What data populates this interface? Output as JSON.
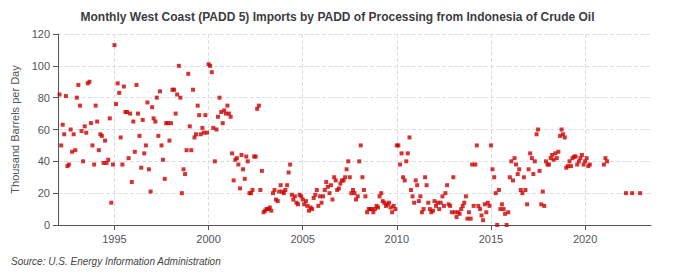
{
  "chart_data": {
    "type": "scatter",
    "title": "Monthly West Coast (PADD 5) Imports by PADD of Processing from Indonesia of Crude Oil",
    "ylabel": "Thousand Barrels per Day",
    "annotation": "Source: U.S. Energy Information Administration",
    "color": "#cc0000",
    "marker": "square",
    "grid": true,
    "xlim": [
      1992.0,
      2023.5
    ],
    "xticks": [
      1995,
      2000,
      2005,
      2010,
      2015,
      2020
    ],
    "ylim": [
      0,
      120
    ],
    "yticks": [
      0,
      20,
      40,
      60,
      80,
      100,
      120
    ],
    "x": [
      1992.08,
      1992.17,
      1992.25,
      1992.33,
      1992.42,
      1992.5,
      1992.58,
      1992.67,
      1992.75,
      1992.83,
      1992.92,
      1993.0,
      1993.08,
      1993.17,
      1993.25,
      1993.33,
      1993.42,
      1993.5,
      1993.58,
      1993.67,
      1993.75,
      1993.83,
      1993.92,
      1994.0,
      1994.08,
      1994.17,
      1994.25,
      1994.33,
      1994.42,
      1994.5,
      1994.58,
      1994.67,
      1994.75,
      1994.83,
      1994.92,
      1995.0,
      1995.08,
      1995.17,
      1995.25,
      1995.33,
      1995.42,
      1995.5,
      1995.58,
      1995.67,
      1995.75,
      1995.83,
      1995.92,
      1996.0,
      1996.08,
      1996.17,
      1996.25,
      1996.33,
      1996.42,
      1996.5,
      1996.58,
      1996.67,
      1996.75,
      1996.83,
      1996.92,
      1997.0,
      1997.08,
      1997.17,
      1997.25,
      1997.33,
      1997.42,
      1997.5,
      1997.58,
      1997.67,
      1997.75,
      1997.83,
      1997.92,
      1998.0,
      1998.08,
      1998.17,
      1998.25,
      1998.33,
      1998.42,
      1998.5,
      1998.58,
      1998.67,
      1998.75,
      1998.83,
      1998.92,
      1999.0,
      1999.08,
      1999.17,
      1999.25,
      1999.33,
      1999.42,
      1999.5,
      1999.58,
      1999.67,
      1999.75,
      1999.83,
      1999.92,
      2000.0,
      2000.08,
      2000.17,
      2000.25,
      2000.33,
      2000.42,
      2000.5,
      2000.58,
      2000.67,
      2000.75,
      2000.83,
      2000.92,
      2001.0,
      2001.08,
      2001.17,
      2001.25,
      2001.33,
      2001.42,
      2001.5,
      2001.58,
      2001.67,
      2001.75,
      2001.83,
      2001.92,
      2002.0,
      2002.08,
      2002.17,
      2002.25,
      2002.33,
      2002.42,
      2002.5,
      2002.58,
      2002.67,
      2002.75,
      2002.83,
      2002.92,
      2003.0,
      2003.08,
      2003.17,
      2003.25,
      2003.33,
      2003.42,
      2003.5,
      2003.58,
      2003.67,
      2003.75,
      2003.83,
      2003.92,
      2004.0,
      2004.08,
      2004.17,
      2004.25,
      2004.33,
      2004.42,
      2004.5,
      2004.58,
      2004.67,
      2004.75,
      2004.83,
      2004.92,
      2005.0,
      2005.08,
      2005.17,
      2005.25,
      2005.33,
      2005.42,
      2005.5,
      2005.58,
      2005.67,
      2005.75,
      2005.83,
      2005.92,
      2006.0,
      2006.08,
      2006.17,
      2006.25,
      2006.33,
      2006.42,
      2006.5,
      2006.58,
      2006.67,
      2006.75,
      2006.83,
      2006.92,
      2007.0,
      2007.08,
      2007.17,
      2007.25,
      2007.33,
      2007.42,
      2007.5,
      2007.58,
      2007.67,
      2007.75,
      2007.83,
      2007.92,
      2008.0,
      2008.08,
      2008.17,
      2008.25,
      2008.33,
      2008.42,
      2008.5,
      2008.58,
      2008.67,
      2008.75,
      2008.83,
      2008.92,
      2009.0,
      2009.08,
      2009.17,
      2009.25,
      2009.33,
      2009.42,
      2009.5,
      2009.58,
      2009.67,
      2009.75,
      2009.83,
      2009.92,
      2010.0,
      2010.08,
      2010.17,
      2010.25,
      2010.33,
      2010.42,
      2010.5,
      2010.58,
      2010.67,
      2010.75,
      2010.83,
      2010.92,
      2011.0,
      2011.08,
      2011.17,
      2011.25,
      2011.33,
      2011.42,
      2011.5,
      2011.58,
      2011.67,
      2011.75,
      2011.83,
      2011.92,
      2012.0,
      2012.08,
      2012.17,
      2012.25,
      2012.33,
      2012.42,
      2012.5,
      2012.58,
      2012.67,
      2012.75,
      2012.83,
      2012.92,
      2013.0,
      2013.08,
      2013.17,
      2013.25,
      2013.33,
      2013.42,
      2013.5,
      2013.58,
      2013.67,
      2013.75,
      2013.83,
      2013.92,
      2014.0,
      2014.08,
      2014.17,
      2014.25,
      2014.33,
      2014.42,
      2014.5,
      2014.58,
      2014.67,
      2014.75,
      2014.83,
      2014.92,
      2015.0,
      2015.08,
      2015.17,
      2015.25,
      2015.33,
      2015.42,
      2015.5,
      2015.58,
      2015.67,
      2015.75,
      2015.83,
      2015.92,
      2016.0,
      2016.08,
      2016.17,
      2016.25,
      2016.33,
      2016.42,
      2016.5,
      2016.58,
      2016.67,
      2016.75,
      2016.83,
      2016.92,
      2017.0,
      2017.08,
      2017.17,
      2017.25,
      2017.33,
      2017.42,
      2017.5,
      2017.58,
      2017.67,
      2017.75,
      2017.83,
      2017.92,
      2018.0,
      2018.08,
      2018.17,
      2018.25,
      2018.33,
      2018.42,
      2018.5,
      2018.58,
      2018.67,
      2018.75,
      2018.83,
      2018.92,
      2019.0,
      2019.08,
      2019.17,
      2019.25,
      2019.33,
      2019.42,
      2019.5,
      2019.58,
      2019.67,
      2019.75,
      2019.83,
      2019.92,
      2020.0,
      2020.08,
      2020.17,
      2020.25,
      2021.0,
      2021.08,
      2021.17,
      2022.17,
      2022.5,
      2022.92
    ],
    "values": [
      82,
      50,
      63,
      57,
      81,
      37,
      38,
      60,
      46,
      57,
      47,
      80,
      88,
      75,
      59,
      40,
      62,
      58,
      89,
      90,
      64,
      50,
      38,
      75,
      65,
      47,
      57,
      56,
      39,
      53,
      39,
      41,
      67,
      14,
      38,
      113,
      76,
      89,
      83,
      55,
      38,
      87,
      71,
      71,
      42,
      70,
      27,
      65,
      46,
      88,
      70,
      56,
      36,
      66,
      45,
      50,
      77,
      35,
      21,
      74,
      67,
      65,
      80,
      56,
      84,
      50,
      41,
      29,
      64,
      64,
      53,
      64,
      85,
      85,
      70,
      82,
      100,
      80,
      20,
      35,
      32,
      47,
      95,
      62,
      47,
      85,
      55,
      57,
      75,
      69,
      57,
      61,
      58,
      69,
      58,
      101,
      100,
      96,
      61,
      40,
      60,
      68,
      80,
      71,
      64,
      72,
      70,
      75,
      70,
      68,
      45,
      28,
      41,
      42,
      38,
      23,
      44,
      35,
      29,
      43,
      40,
      20,
      20,
      22,
      43,
      43,
      73,
      75,
      22,
      34,
      8,
      9,
      10,
      10,
      11,
      9,
      20,
      22,
      16,
      15,
      21,
      25,
      21,
      20,
      22,
      25,
      33,
      38,
      19,
      16,
      18,
      14,
      13,
      19,
      18,
      16,
      13,
      15,
      12,
      9,
      11,
      10,
      17,
      19,
      22,
      12,
      18,
      14,
      18,
      22,
      27,
      24,
      20,
      25,
      16,
      30,
      28,
      22,
      23,
      26,
      28,
      28,
      30,
      35,
      40,
      30,
      20,
      22,
      20,
      16,
      18,
      40,
      50,
      30,
      22,
      18,
      8,
      10,
      10,
      10,
      8,
      10,
      12,
      11,
      18,
      20,
      15,
      14,
      12,
      13,
      14,
      11,
      8,
      12,
      10,
      50,
      50,
      38,
      45,
      30,
      28,
      40,
      45,
      55,
      22,
      18,
      14,
      28,
      25,
      15,
      18,
      8,
      10,
      30,
      25,
      14,
      10,
      8,
      9,
      15,
      12,
      14,
      10,
      14,
      18,
      12,
      20,
      25,
      13,
      12,
      8,
      30,
      8,
      5,
      8,
      7,
      10,
      12,
      14,
      18,
      4,
      8,
      4,
      38,
      12,
      38,
      50,
      12,
      10,
      6,
      3,
      13,
      8,
      14,
      12,
      50,
      35,
      30,
      20,
      0,
      22,
      10,
      13,
      10,
      7,
      0,
      8,
      30,
      40,
      28,
      42,
      38,
      32,
      35,
      22,
      20,
      30,
      22,
      13,
      35,
      45,
      42,
      32,
      40,
      57,
      60,
      34,
      13,
      21,
      12,
      40,
      38,
      38,
      42,
      44,
      41,
      45,
      42,
      46,
      56,
      60,
      57,
      55,
      36,
      37,
      40,
      37,
      42,
      43,
      43,
      38,
      40,
      42,
      44,
      38,
      40,
      42,
      37,
      38,
      38,
      42,
      40,
      20,
      20,
      20
    ]
  }
}
